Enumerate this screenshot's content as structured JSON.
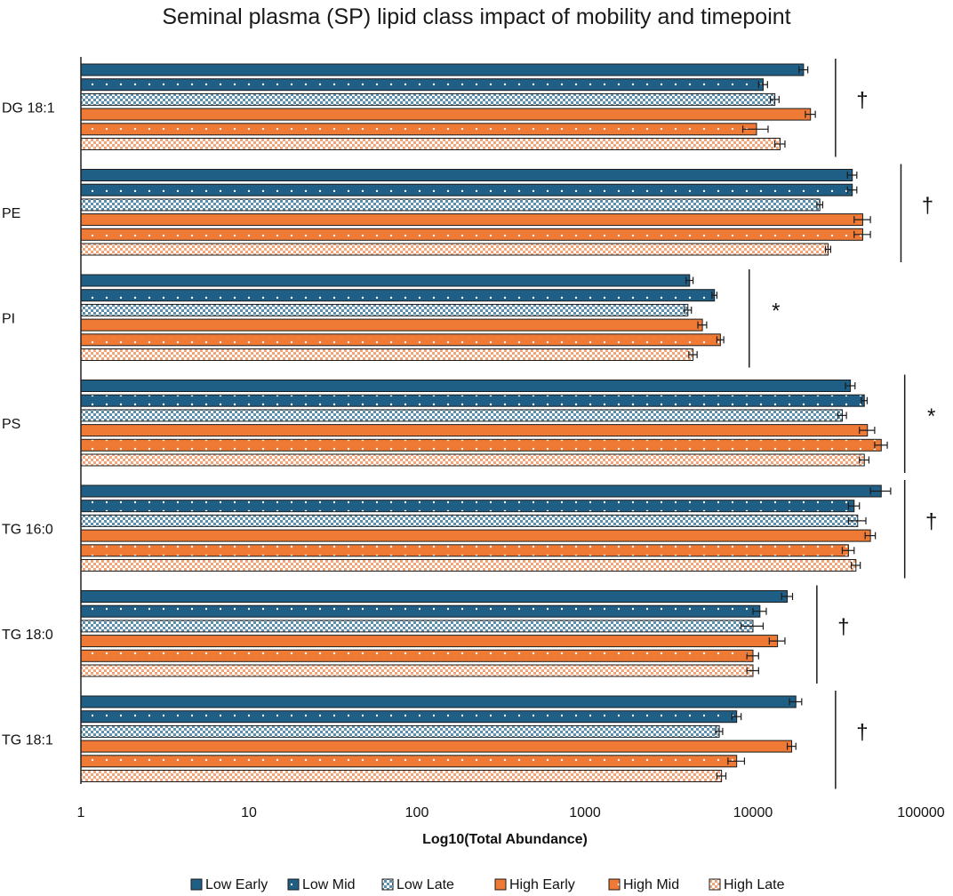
{
  "chart_data": {
    "type": "bar",
    "orientation": "horizontal",
    "title": "Seminal plasma (SP) lipid class impact of mobility and timepoint",
    "xlabel": "Log10(Total Abundance)",
    "ylabel": "",
    "xscale": "log",
    "xlim": [
      1,
      100000
    ],
    "xticks": [
      "1",
      "10",
      "100",
      "1000",
      "10000",
      "100000"
    ],
    "grid": false,
    "legend_position": "bottom",
    "categories": [
      "DG 18:1",
      "PE",
      "PI",
      "PS",
      "TG 16:0",
      "TG 18:0",
      "TG 18:1"
    ],
    "series": [
      {
        "name": "Low Early",
        "color": "#1f5f85",
        "pattern": "solid",
        "values": [
          20000,
          39000,
          4200,
          38000,
          58000,
          16000,
          18000
        ],
        "errors": [
          1200,
          2500,
          200,
          2500,
          8000,
          1200,
          1500
        ]
      },
      {
        "name": "Low Mid",
        "color": "#1f5f85",
        "pattern": "dots",
        "values": [
          11500,
          39000,
          5900,
          46000,
          40000,
          11000,
          8000
        ],
        "errors": [
          700,
          2500,
          200,
          1800,
          3000,
          1000,
          500
        ]
      },
      {
        "name": "Low Late",
        "color": "#1f5f85",
        "pattern": "check",
        "values": [
          13500,
          25000,
          4100,
          34000,
          42000,
          10000,
          6300
        ],
        "errors": [
          800,
          1000,
          200,
          2000,
          5000,
          1500,
          300
        ]
      },
      {
        "name": "High Early",
        "color": "#ee7a36",
        "pattern": "solid",
        "values": [
          22000,
          45000,
          5000,
          48000,
          50000,
          14000,
          17000
        ],
        "errors": [
          1500,
          5000,
          300,
          5000,
          3500,
          1500,
          1000
        ]
      },
      {
        "name": "High Mid",
        "color": "#ee7a36",
        "pattern": "dots",
        "values": [
          10500,
          45000,
          6400,
          58000,
          37000,
          10000,
          8000
        ],
        "errors": [
          1800,
          5000,
          300,
          5000,
          3000,
          800,
          900
        ]
      },
      {
        "name": "High Late",
        "color": "#f2a377",
        "pattern": "check",
        "values": [
          14500,
          28000,
          4400,
          46000,
          41000,
          10000,
          6500
        ],
        "errors": [
          1000,
          1000,
          250,
          3000,
          2500,
          800,
          400
        ]
      }
    ],
    "annotations": [
      {
        "category": "DG 18:1",
        "symbol": "†",
        "bracket_at": 31000
      },
      {
        "category": "PE",
        "symbol": "†",
        "bracket_at": 76000
      },
      {
        "category": "PI",
        "symbol": "*",
        "bracket_at": 9500
      },
      {
        "category": "PS",
        "symbol": "*",
        "bracket_at": 80000
      },
      {
        "category": "TG 16:0",
        "symbol": "†",
        "bracket_at": 80000
      },
      {
        "category": "TG 18:0",
        "symbol": "†",
        "bracket_at": 24000
      },
      {
        "category": "TG 18:1",
        "symbol": "†",
        "bracket_at": 31000
      }
    ]
  }
}
